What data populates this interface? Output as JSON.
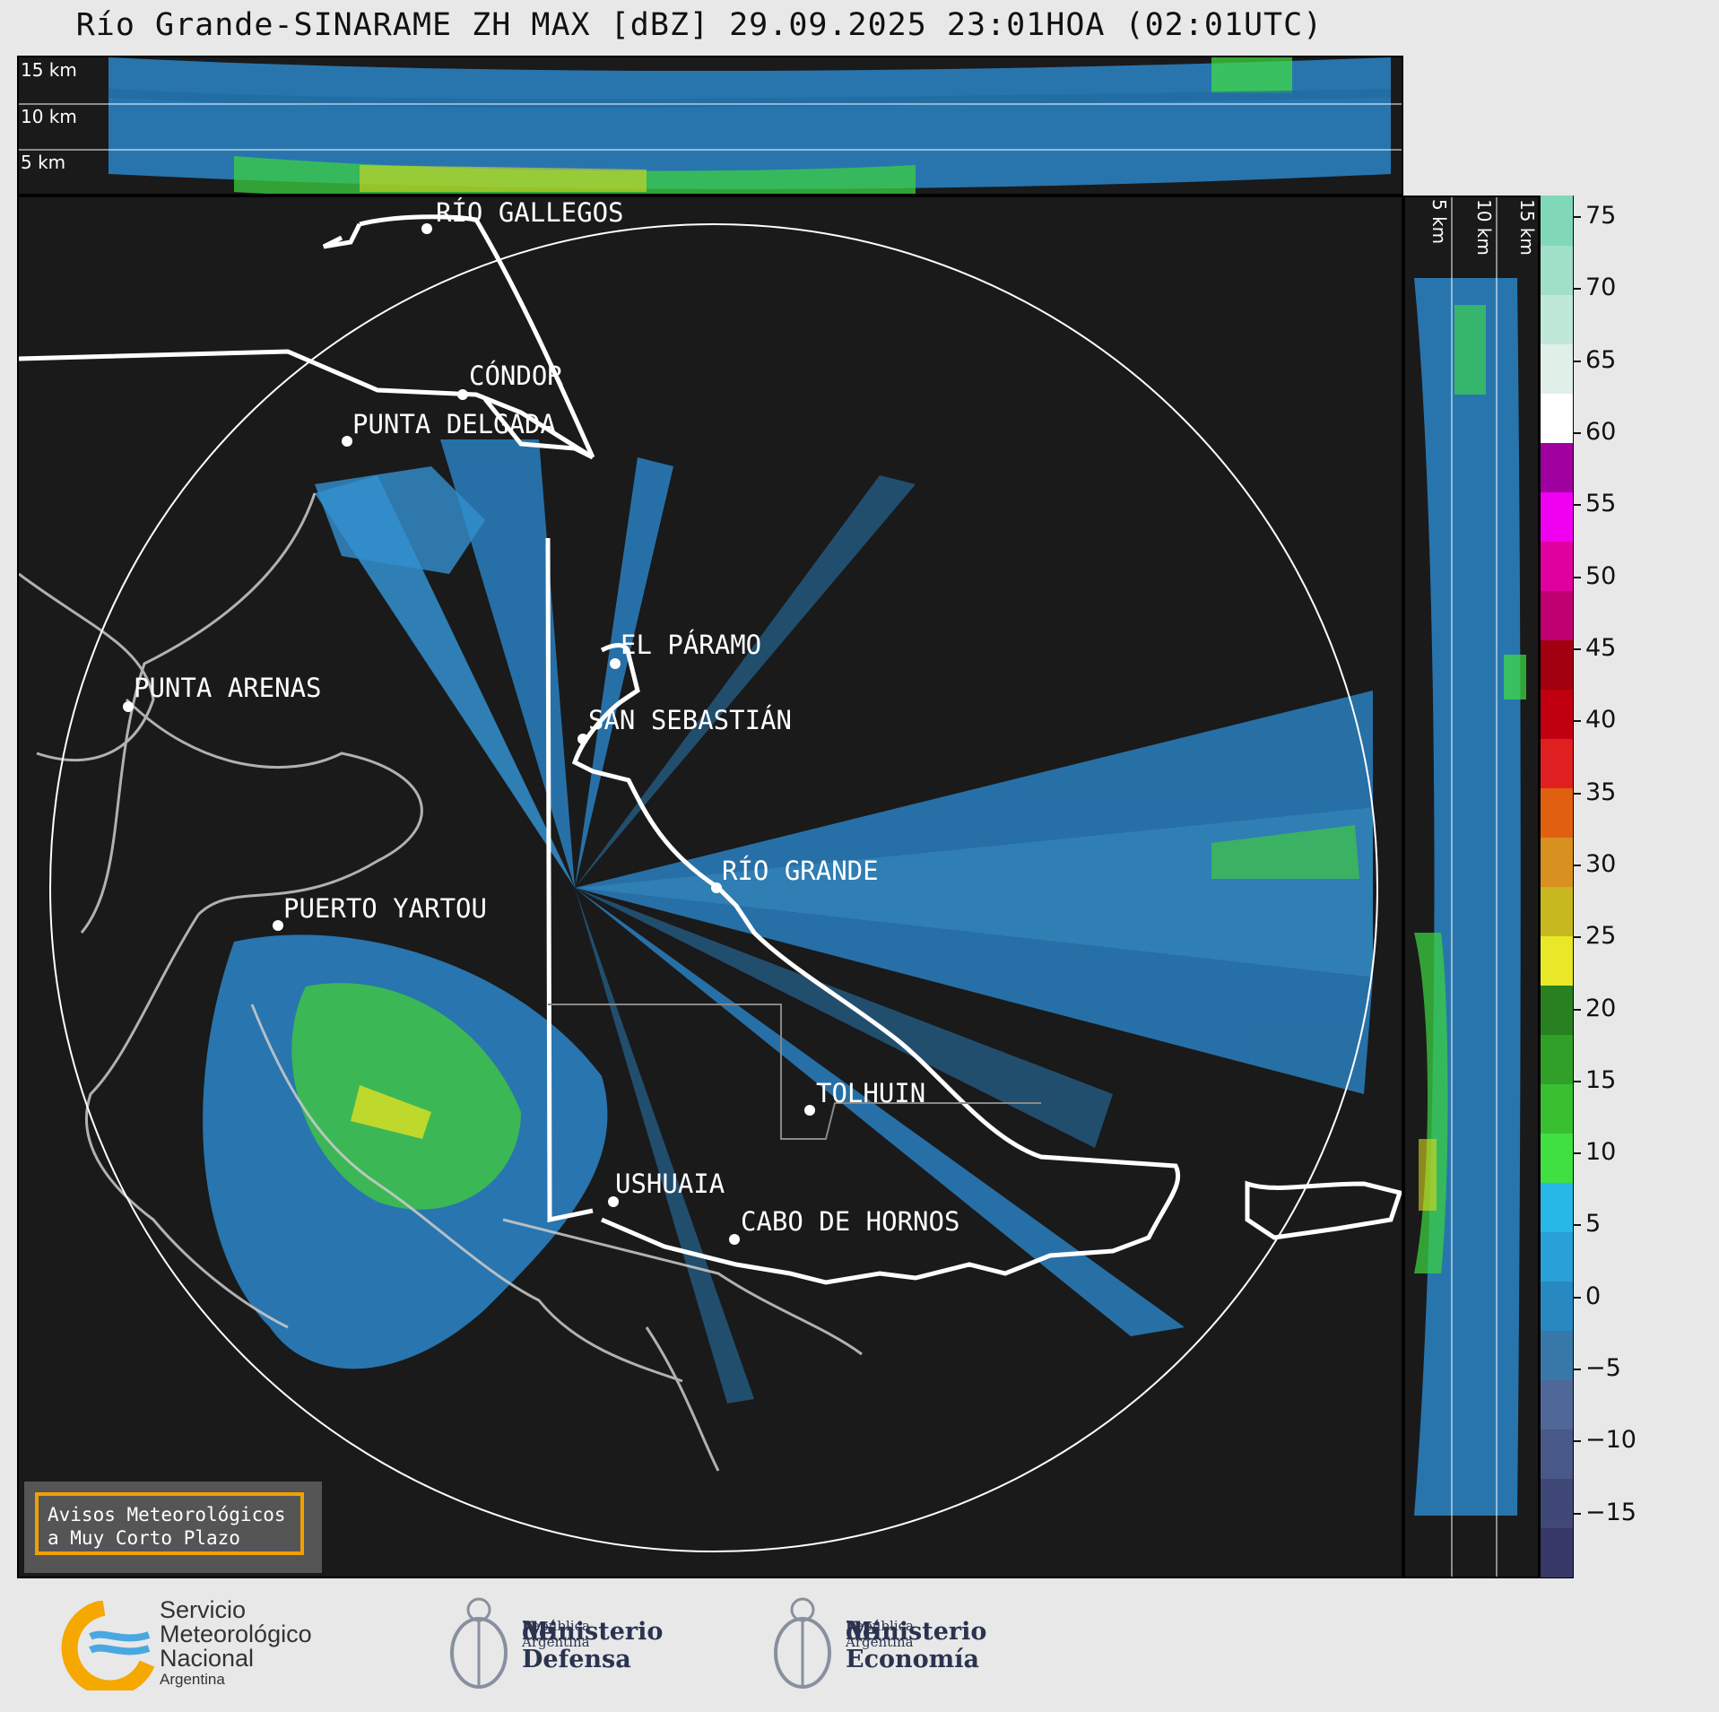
{
  "title": "Río Grande-SINARAME ZH MAX [dBZ] 29.09.2025 23:01HOA (02:01UTC)",
  "top_profile": {
    "height_labels": [
      "15 km",
      "10 km",
      "5 km"
    ]
  },
  "side_profile": {
    "height_labels": [
      "5 km",
      "10 km",
      "15 km"
    ]
  },
  "colorbar": {
    "unit": "dBZ",
    "ticks": [
      "75",
      "70",
      "65",
      "60",
      "55",
      "50",
      "45",
      "40",
      "35",
      "30",
      "25",
      "20",
      "15",
      "10",
      "5",
      "0",
      "−5",
      "−10",
      "−15"
    ],
    "colors": [
      "#383868",
      "#404878",
      "#485888",
      "#506898",
      "#3878a8",
      "#2888c0",
      "#28a0d8",
      "#28b8e8",
      "#40e040",
      "#38c030",
      "#30a028",
      "#288020",
      "#e8e828",
      "#c8b820",
      "#d89020",
      "#e06010",
      "#e02020",
      "#c00010",
      "#a00010",
      "#c00070",
      "#e000a0",
      "#f000f0",
      "#a000a0",
      "#ffffff",
      "#e0f0e8",
      "#c0e8d8",
      "#a0e0c8",
      "#80d8b8"
    ]
  },
  "cities": [
    {
      "name": "RÍO GALLEGOS"
    },
    {
      "name": "CÓNDOR"
    },
    {
      "name": "PUNTA DELGADA"
    },
    {
      "name": "EL PÁRAMO"
    },
    {
      "name": "PUNTA ARENAS"
    },
    {
      "name": "SAN SEBASTIÁN"
    },
    {
      "name": "RÍO GRANDE"
    },
    {
      "name": "PUERTO YARTOU"
    },
    {
      "name": "TOLHUIN"
    },
    {
      "name": "USHUAIA"
    },
    {
      "name": "CABO DE HORNOS"
    }
  ],
  "warning_box": {
    "line1": "Avisos Meteorológicos",
    "line2": "a Muy Corto Plazo"
  },
  "footer": {
    "smn": {
      "line1": "Servicio",
      "line2": "Meteorológico",
      "line3": "Nacional",
      "line4": "Argentina"
    },
    "defensa": {
      "line1": "Ministerio",
      "line2": "de Defensa",
      "line3": "República Argentina"
    },
    "economia": {
      "line1": "Ministerio",
      "line2": "de Economía",
      "line3": "República Argentina"
    }
  },
  "colors": {
    "background": "#1a1a1a",
    "ring": "#ffffff",
    "coast": "#cccccc",
    "border": "#ffffff",
    "echo_low": "#2888c0",
    "echo_mid": "#40e040",
    "echo_high": "#e8e828"
  }
}
